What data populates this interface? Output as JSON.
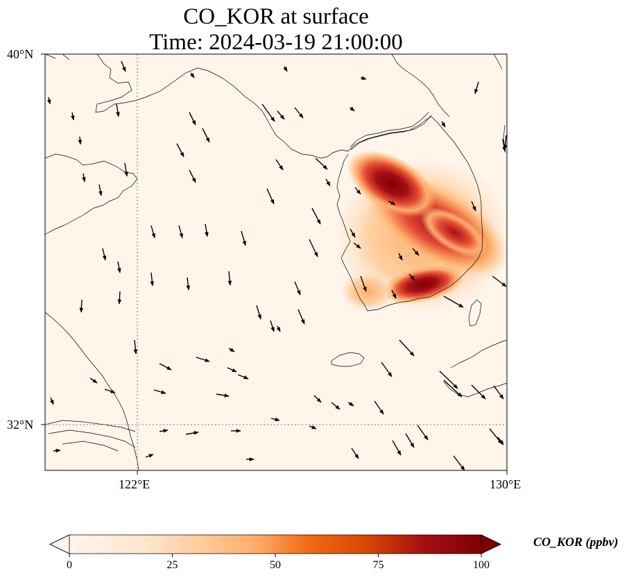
{
  "title": {
    "line1": "CO_KOR at surface",
    "line2": "Time: 2024-03-19 21:00:00"
  },
  "axes": {
    "lat_ticks": [
      "40°N",
      "32°N"
    ],
    "lon_ticks": [
      "122°E",
      "130°E"
    ],
    "lon_range": [
      120,
      130
    ],
    "lat_range": [
      31,
      40
    ],
    "gridlines": "dotted"
  },
  "colorbar": {
    "label": "CO_KOR (ppbv)",
    "ticks": [
      "0",
      "25",
      "50",
      "75",
      "100"
    ],
    "range": [
      0,
      100
    ],
    "extend": "both",
    "colors": [
      "#fff5eb",
      "#fdd0a2",
      "#fd8d3c",
      "#d94801",
      "#a50f15",
      "#7f0000"
    ]
  },
  "field": {
    "variable": "CO_KOR",
    "units": "ppbv",
    "max_region": "Korean Peninsula (central-west and southern coast)"
  }
}
